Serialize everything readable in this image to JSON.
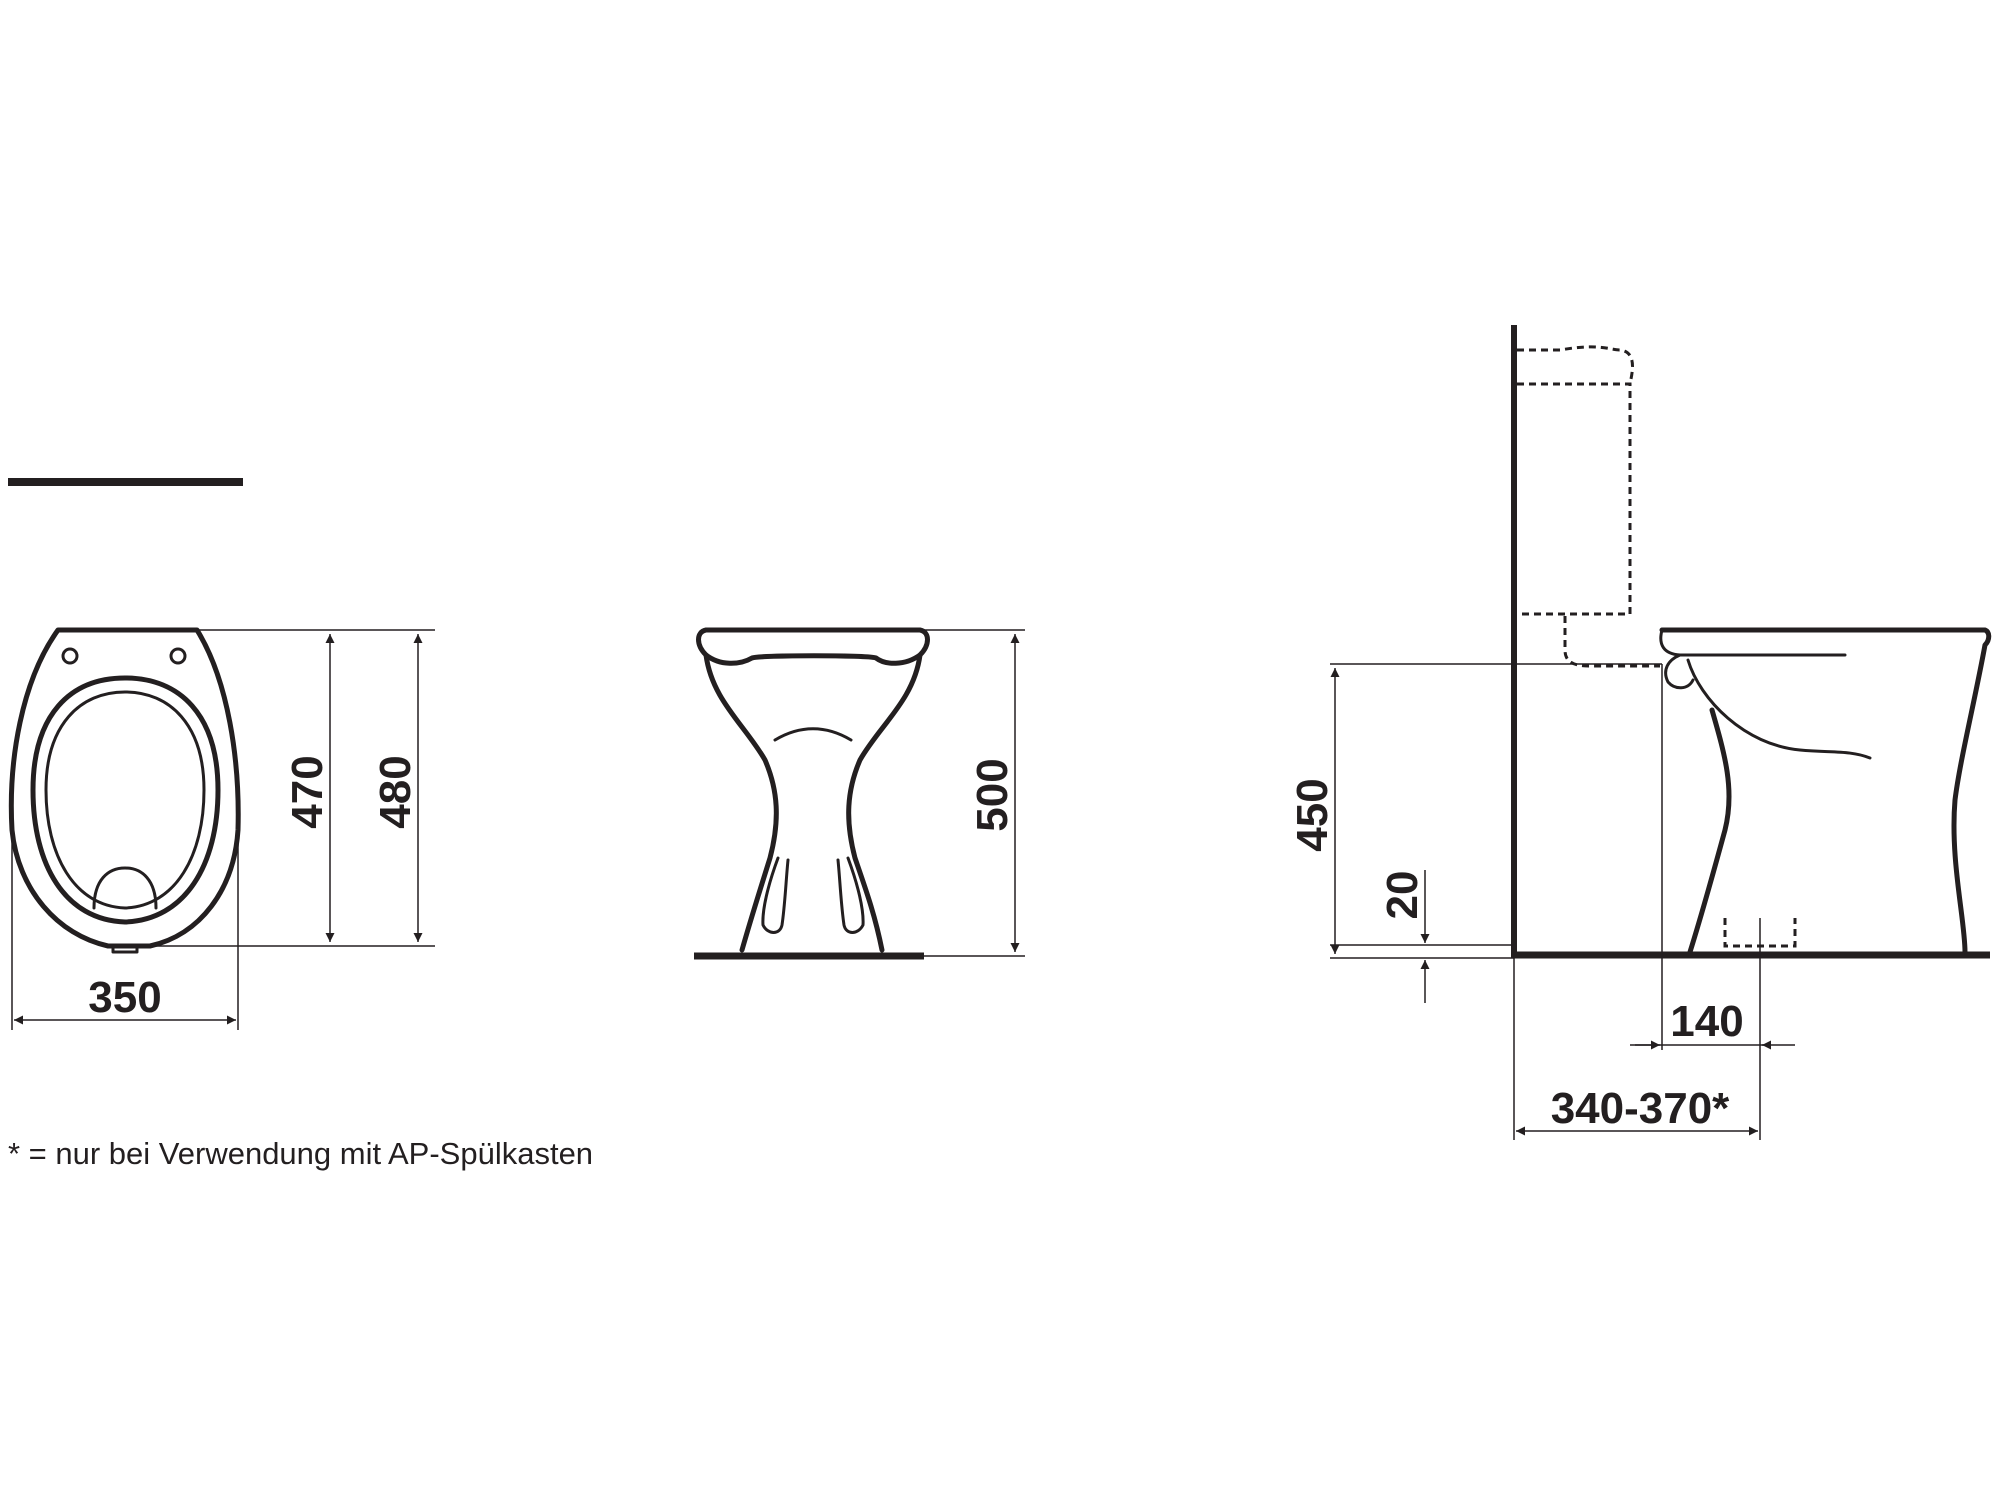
{
  "top_view": {
    "width_label": "350",
    "inner_length_label": "470",
    "outer_length_label": "480"
  },
  "front_view": {
    "height_label": "500"
  },
  "side_view": {
    "seat_height_label": "450",
    "floor_offset_label": "20",
    "outlet_distance_label": "140",
    "wall_distance_label": "340-370*"
  },
  "footnote": "* = nur bei Verwendung mit AP-Spülkasten"
}
